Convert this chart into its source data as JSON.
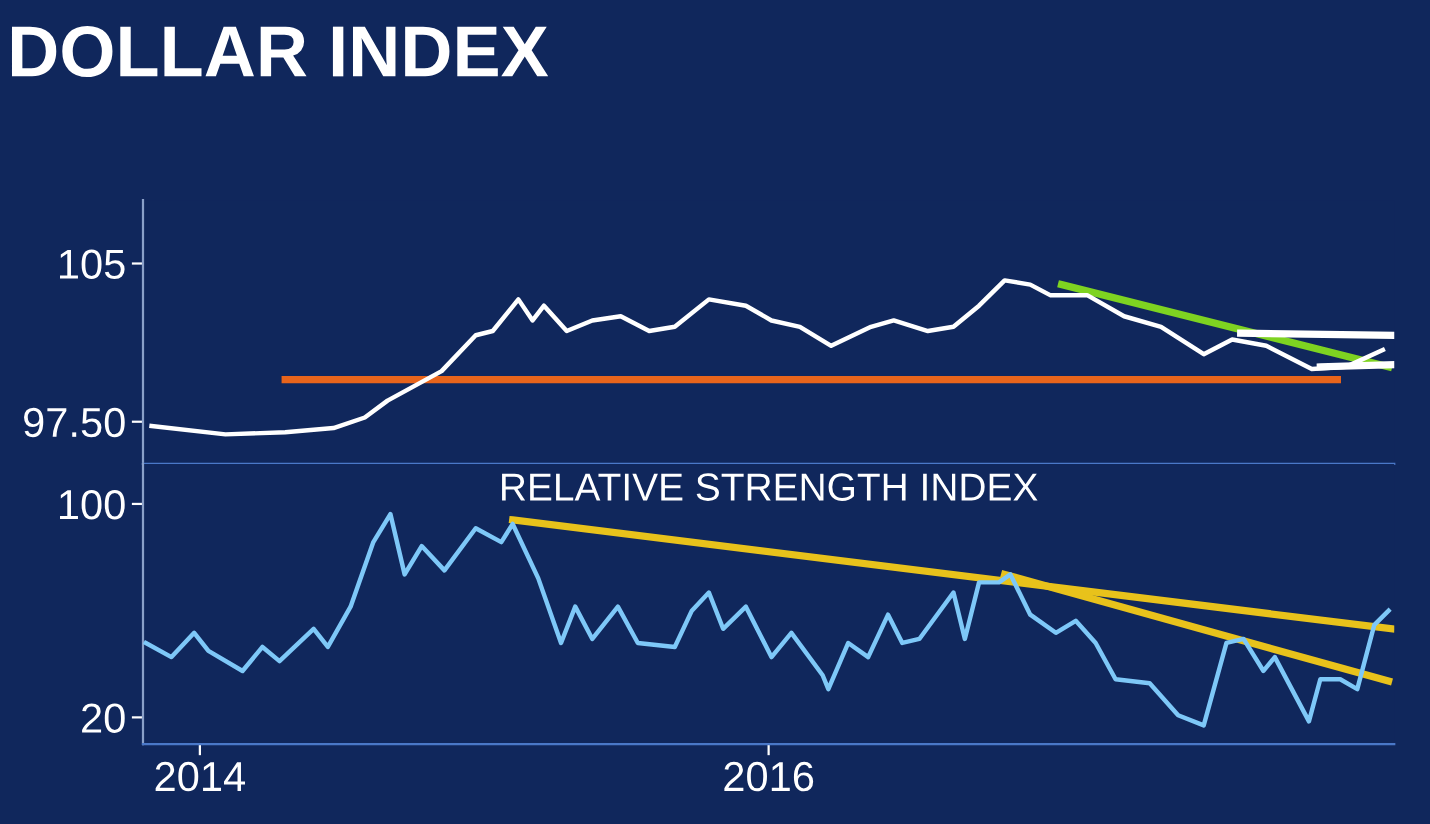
{
  "chart_data": [
    {
      "type": "line",
      "title": "DOLLAR INDEX",
      "xlim": [
        2013.8,
        2018.2
      ],
      "ylim": [
        95.5,
        108
      ],
      "yticks": [
        105,
        {
          "value": 97.5,
          "label": "97.50"
        }
      ],
      "tick_labels": "y",
      "grid": false,
      "legend": false,
      "series": [
        {
          "color": "#ffffff",
          "x": [
            2013.83,
            2014.09,
            2014.3,
            2014.47,
            2014.58,
            2014.66,
            2014.85,
            2014.97,
            2015.03,
            2015.12,
            2015.17,
            2015.21,
            2015.29,
            2015.38,
            2015.48,
            2015.58,
            2015.67,
            2015.79,
            2015.92,
            2016.01,
            2016.11,
            2016.22,
            2016.36,
            2016.44,
            2016.56,
            2016.65,
            2016.74,
            2016.83,
            2016.92,
            2016.99,
            2017.12,
            2017.25,
            2017.38,
            2017.53,
            2017.63,
            2017.75,
            2017.91,
            2018.03,
            2018.16
          ],
          "values": [
            97.3,
            96.9,
            97.0,
            97.2,
            97.7,
            98.5,
            99.9,
            101.6,
            101.8,
            103.3,
            102.3,
            103.0,
            101.8,
            102.3,
            102.5,
            101.8,
            102.0,
            103.3,
            103.0,
            102.3,
            102.0,
            101.1,
            102.0,
            102.3,
            101.8,
            102.0,
            103.0,
            104.2,
            104.0,
            103.5,
            103.5,
            102.5,
            102.0,
            100.7,
            101.4,
            101.1,
            100.0,
            100.1,
            100.9
          ]
        },
        {
          "color": "#e8641b",
          "x": [
            2014.3,
            2018.0
          ],
          "values": [
            99.5,
            99.5
          ]
        },
        {
          "color": "#7ed321",
          "x": [
            2017.03,
            2018.18
          ],
          "values": [
            104.0,
            100.1
          ]
        },
        {
          "color": "#ffffff",
          "x": [
            2017.66,
            2018.19
          ],
          "values": [
            101.7,
            101.6
          ]
        },
        {
          "color": "#ffffff",
          "x": [
            2017.94,
            2018.19
          ],
          "values": [
            100.1,
            100.2
          ]
        }
      ]
    },
    {
      "type": "line",
      "title": "RELATIVE STRENGTH INDEX",
      "xlim": [
        2013.8,
        2018.2
      ],
      "xticks": [
        2014,
        2016
      ],
      "ylim": [
        10,
        115
      ],
      "yticks": [
        20,
        100
      ],
      "grid": false,
      "legend": false,
      "series": [
        {
          "color": "#7ec8f8",
          "x": [
            2013.81,
            2013.9,
            2013.98,
            2014.03,
            2014.15,
            2014.22,
            2014.28,
            2014.4,
            2014.45,
            2014.53,
            2014.61,
            2014.67,
            2014.72,
            2014.78,
            2014.86,
            2014.97,
            2015.06,
            2015.1,
            2015.19,
            2015.27,
            2015.32,
            2015.38,
            2015.47,
            2015.54,
            2015.67,
            2015.73,
            2015.79,
            2015.84,
            2015.92,
            2016.01,
            2016.08,
            2016.19,
            2016.21,
            2016.28,
            2016.35,
            2016.42,
            2016.47,
            2016.53,
            2016.65,
            2016.69,
            2016.74,
            2016.81,
            2016.85,
            2016.92,
            2017.01,
            2017.08,
            2017.15,
            2017.22,
            2017.34,
            2017.44,
            2017.53,
            2017.61,
            2017.67,
            2017.74,
            2017.78,
            2017.9,
            2017.94,
            2018.01,
            2018.07,
            2018.13,
            2018.18
          ],
          "values": [
            47.9,
            42.6,
            51.7,
            44.9,
            37.4,
            46.4,
            41.1,
            53.2,
            46.4,
            61.5,
            85.7,
            96.2,
            73.6,
            84.2,
            75.1,
            90.9,
            85.7,
            92.5,
            72.1,
            47.9,
            61.5,
            49.4,
            61.5,
            47.9,
            46.4,
            60.0,
            66.8,
            53.2,
            61.5,
            42.6,
            51.7,
            35.8,
            30.6,
            47.9,
            42.6,
            58.5,
            47.9,
            49.4,
            66.8,
            49.4,
            70.6,
            70.6,
            73.6,
            58.5,
            51.7,
            56.2,
            47.9,
            34.3,
            32.8,
            20.8,
            17.0,
            47.9,
            49.4,
            37.4,
            42.6,
            18.5,
            34.3,
            34.3,
            30.6,
            54.7,
            60.0
          ]
        },
        {
          "color": "#e8c21b",
          "x": [
            2015.1,
            2018.19
          ],
          "values": [
            94.0,
            53.2
          ]
        },
        {
          "color": "#e8c21b",
          "x": [
            2016.83,
            2018.18
          ],
          "values": [
            73.6,
            33.6
          ]
        }
      ]
    }
  ]
}
